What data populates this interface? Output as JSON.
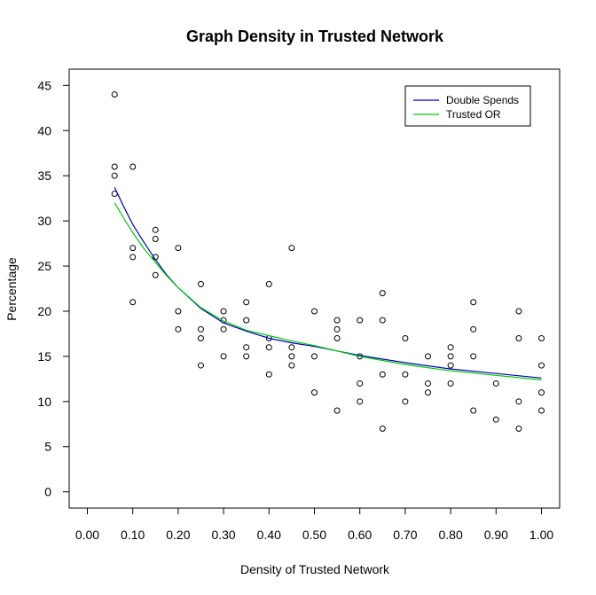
{
  "chart_data": {
    "type": "scatter",
    "title": "Graph Density in Trusted Network",
    "xlabel": "Density of Trusted Network",
    "ylabel": "Percentage",
    "xlim": [
      -0.04,
      1.04
    ],
    "ylim": [
      -1.8,
      46.8
    ],
    "x_ticks": [
      0.0,
      0.1,
      0.2,
      0.3,
      0.4,
      0.5,
      0.6,
      0.7,
      0.8,
      0.9,
      1.0
    ],
    "x_tick_labels": [
      "0.00",
      "0.10",
      "0.20",
      "0.30",
      "0.40",
      "0.50",
      "0.60",
      "0.70",
      "0.80",
      "0.90",
      "1.00"
    ],
    "y_ticks": [
      0,
      5,
      10,
      15,
      20,
      25,
      30,
      35,
      40,
      45
    ],
    "y_tick_labels": [
      "0",
      "5",
      "10",
      "15",
      "20",
      "25",
      "30",
      "35",
      "40",
      "45"
    ],
    "grid": false,
    "legend_position": "top-right",
    "points": [
      [
        0.06,
        44
      ],
      [
        0.06,
        36
      ],
      [
        0.06,
        35
      ],
      [
        0.06,
        33
      ],
      [
        0.1,
        36
      ],
      [
        0.1,
        27
      ],
      [
        0.1,
        26
      ],
      [
        0.1,
        21
      ],
      [
        0.15,
        29
      ],
      [
        0.15,
        28
      ],
      [
        0.15,
        26
      ],
      [
        0.15,
        24
      ],
      [
        0.2,
        27
      ],
      [
        0.2,
        20
      ],
      [
        0.2,
        18
      ],
      [
        0.25,
        23
      ],
      [
        0.25,
        18
      ],
      [
        0.25,
        17
      ],
      [
        0.25,
        14
      ],
      [
        0.3,
        20
      ],
      [
        0.3,
        19
      ],
      [
        0.3,
        18
      ],
      [
        0.3,
        15
      ],
      [
        0.35,
        21
      ],
      [
        0.35,
        19
      ],
      [
        0.35,
        16
      ],
      [
        0.35,
        15
      ],
      [
        0.4,
        23
      ],
      [
        0.4,
        17
      ],
      [
        0.4,
        16
      ],
      [
        0.4,
        13
      ],
      [
        0.45,
        27
      ],
      [
        0.45,
        16
      ],
      [
        0.45,
        15
      ],
      [
        0.45,
        14
      ],
      [
        0.5,
        20
      ],
      [
        0.5,
        15
      ],
      [
        0.5,
        11
      ],
      [
        0.55,
        19
      ],
      [
        0.55,
        18
      ],
      [
        0.55,
        17
      ],
      [
        0.55,
        9
      ],
      [
        0.6,
        19
      ],
      [
        0.6,
        15
      ],
      [
        0.6,
        12
      ],
      [
        0.6,
        10
      ],
      [
        0.65,
        22
      ],
      [
        0.65,
        19
      ],
      [
        0.65,
        13
      ],
      [
        0.65,
        7
      ],
      [
        0.7,
        17
      ],
      [
        0.7,
        13
      ],
      [
        0.7,
        10
      ],
      [
        0.75,
        15
      ],
      [
        0.75,
        12
      ],
      [
        0.75,
        11
      ],
      [
        0.8,
        16
      ],
      [
        0.8,
        15
      ],
      [
        0.8,
        14
      ],
      [
        0.8,
        12
      ],
      [
        0.85,
        21
      ],
      [
        0.85,
        18
      ],
      [
        0.85,
        15
      ],
      [
        0.85,
        9
      ],
      [
        0.9,
        12
      ],
      [
        0.9,
        8
      ],
      [
        0.95,
        20
      ],
      [
        0.95,
        17
      ],
      [
        0.95,
        10
      ],
      [
        0.95,
        7
      ],
      [
        1.0,
        17
      ],
      [
        1.0,
        14
      ],
      [
        1.0,
        11
      ],
      [
        1.0,
        9
      ]
    ],
    "series": [
      {
        "name": "Double Spends",
        "color": "#0000cc",
        "x": [
          0.06,
          0.08,
          0.1,
          0.125,
          0.15,
          0.175,
          0.2,
          0.25,
          0.3,
          0.35,
          0.4,
          0.45,
          0.5,
          0.6,
          0.7,
          0.8,
          0.9,
          1.0
        ],
        "y": [
          33.7,
          31.6,
          29.6,
          27.6,
          25.7,
          24.0,
          22.6,
          20.3,
          18.7,
          17.8,
          17.0,
          16.5,
          16.1,
          15.1,
          14.3,
          13.6,
          13.1,
          12.6
        ]
      },
      {
        "name": "Trusted OR",
        "color": "#00cc00",
        "x": [
          0.06,
          0.08,
          0.1,
          0.125,
          0.15,
          0.175,
          0.2,
          0.25,
          0.3,
          0.35,
          0.4,
          0.45,
          0.5,
          0.6,
          0.7,
          0.8,
          0.9,
          1.0
        ],
        "y": [
          32.0,
          30.3,
          28.7,
          26.9,
          25.4,
          23.9,
          22.6,
          20.4,
          18.9,
          17.9,
          17.3,
          16.7,
          16.2,
          15.0,
          14.1,
          13.4,
          12.9,
          12.4
        ]
      }
    ]
  }
}
